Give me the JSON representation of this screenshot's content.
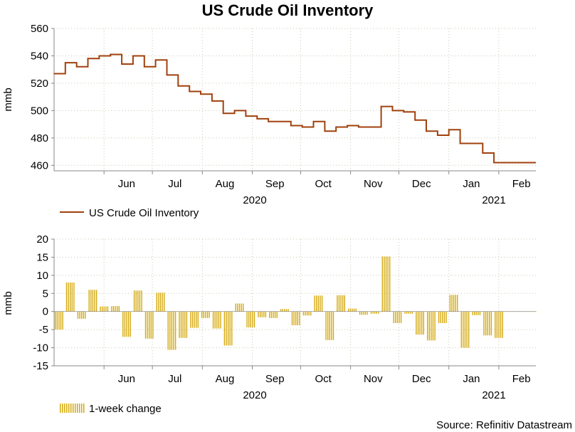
{
  "chart_data": [
    {
      "type": "line",
      "title": "US Crude Oil Inventory",
      "ylabel": "mmb",
      "ylim": [
        456,
        560
      ],
      "yticks": [
        460,
        480,
        500,
        520,
        540,
        560
      ],
      "month_labels": [
        "Jun",
        "Jul",
        "Aug",
        "Sep",
        "Oct",
        "Nov",
        "Dec",
        "Jan",
        "Feb"
      ],
      "year_labels": [
        "2020",
        "2021"
      ],
      "legend": "US Crude Oil Inventory",
      "color": "#a0410d",
      "series": [
        {
          "name": "US Crude Oil Inventory",
          "x": [
            "2020-05-01",
            "2020-05-08",
            "2020-05-15",
            "2020-05-22",
            "2020-05-29",
            "2020-06-05",
            "2020-06-12",
            "2020-06-19",
            "2020-06-26",
            "2020-07-03",
            "2020-07-10",
            "2020-07-17",
            "2020-07-24",
            "2020-07-31",
            "2020-08-07",
            "2020-08-14",
            "2020-08-21",
            "2020-08-28",
            "2020-09-04",
            "2020-09-11",
            "2020-09-18",
            "2020-09-25",
            "2020-10-02",
            "2020-10-09",
            "2020-10-16",
            "2020-10-23",
            "2020-10-30",
            "2020-11-06",
            "2020-11-13",
            "2020-11-20",
            "2020-11-27",
            "2020-12-04",
            "2020-12-11",
            "2020-12-18",
            "2020-12-25",
            "2021-01-01",
            "2021-01-08",
            "2021-01-15",
            "2021-01-22",
            "2021-01-29",
            "2021-02-05",
            "2021-02-12",
            "2021-02-19"
          ],
          "values": [
            527,
            535,
            532,
            538,
            540,
            541,
            534,
            540,
            532,
            537,
            526,
            518,
            514,
            512,
            507,
            498,
            500,
            496,
            494,
            492,
            492,
            489,
            488,
            492,
            485,
            488,
            489,
            488,
            488,
            503,
            500,
            499,
            493,
            485,
            482,
            486,
            476,
            476,
            469,
            462,
            462,
            462,
            462
          ]
        }
      ]
    },
    {
      "type": "bar",
      "ylabel": "mmb",
      "ylim": [
        -15,
        20
      ],
      "yticks": [
        -15,
        -10,
        -5,
        0,
        5,
        10,
        15,
        20
      ],
      "month_labels": [
        "Jun",
        "Jul",
        "Aug",
        "Sep",
        "Oct",
        "Nov",
        "Dec",
        "Jan",
        "Feb"
      ],
      "year_labels": [
        "2020",
        "2021"
      ],
      "legend": "1-week change",
      "color": "#d4a90c",
      "series": [
        {
          "name": "1-week change",
          "x": [
            "2020-05-01",
            "2020-05-08",
            "2020-05-15",
            "2020-05-22",
            "2020-05-29",
            "2020-06-05",
            "2020-06-12",
            "2020-06-19",
            "2020-06-26",
            "2020-07-03",
            "2020-07-10",
            "2020-07-17",
            "2020-07-24",
            "2020-07-31",
            "2020-08-07",
            "2020-08-14",
            "2020-08-21",
            "2020-08-28",
            "2020-09-04",
            "2020-09-11",
            "2020-09-18",
            "2020-09-25",
            "2020-10-02",
            "2020-10-09",
            "2020-10-16",
            "2020-10-23",
            "2020-10-30",
            "2020-11-06",
            "2020-11-13",
            "2020-11-20",
            "2020-11-27",
            "2020-12-04",
            "2020-12-11",
            "2020-12-18",
            "2020-12-25",
            "2021-01-01",
            "2021-01-08",
            "2021-01-15",
            "2021-01-22",
            "2021-01-29",
            "2021-02-05",
            "2021-02-12",
            "2021-02-19"
          ],
          "values": [
            -5.0,
            8.0,
            -2.0,
            6.0,
            1.4,
            1.5,
            -7.0,
            5.8,
            -7.5,
            5.2,
            -10.6,
            -7.3,
            -4.5,
            -1.8,
            -4.7,
            -9.4,
            2.2,
            -4.4,
            -1.6,
            -1.8,
            0.7,
            -3.8,
            -1.1,
            4.4,
            -7.9,
            4.5,
            0.8,
            -0.9,
            -0.6,
            15.2,
            -3.2,
            -0.6,
            -6.4,
            -8.0,
            -3.2,
            4.6,
            -10.0,
            -1.0,
            -6.6,
            -7.3,
            0,
            0,
            0
          ]
        }
      ]
    }
  ],
  "source": "Source: Refinitiv Datastream"
}
